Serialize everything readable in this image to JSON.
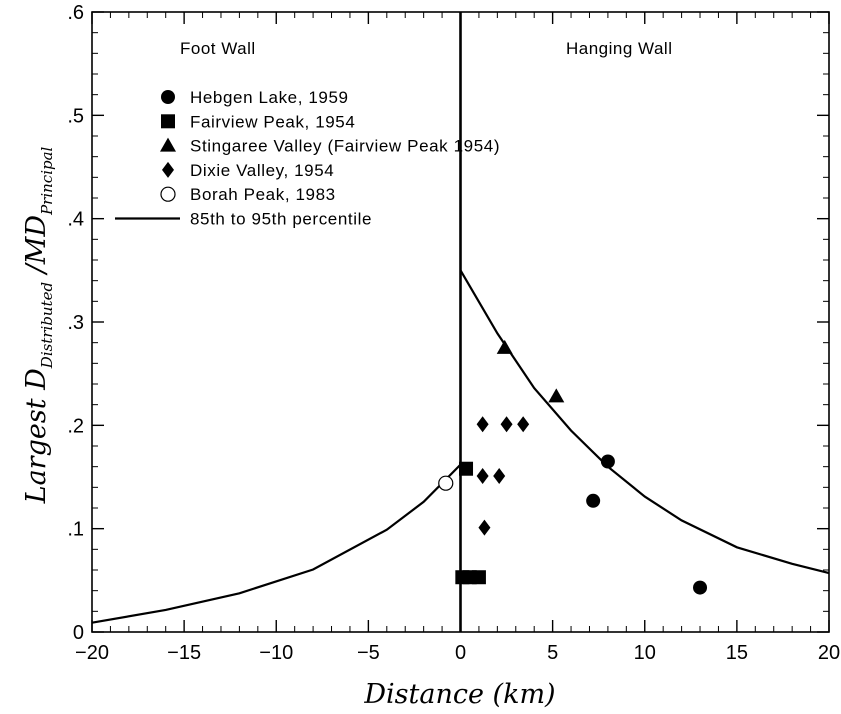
{
  "chart_data": {
    "type": "scatter",
    "xlabel": "Distance (km)",
    "ylabel": {
      "prefix": "Largest ",
      "d": "D",
      "d_sub": "Distributed",
      "sep": " /",
      "md": "MD",
      "md_sub": "Principal"
    },
    "xlim": [
      -20,
      20
    ],
    "ylim": [
      0,
      0.6
    ],
    "x_ticks": [
      -20,
      -15,
      -10,
      -5,
      0,
      5,
      10,
      15,
      20
    ],
    "x_tick_labels": [
      "−20",
      "−15",
      "−10",
      "−5",
      "0",
      "5",
      "10",
      "15",
      "20"
    ],
    "y_ticks": [
      0,
      0.1,
      0.2,
      0.3,
      0.4,
      0.5,
      0.6
    ],
    "y_tick_labels": [
      "0",
      ".1",
      ".2",
      ".3",
      ".4",
      ".5",
      ".6"
    ],
    "grid": false,
    "legend_position": "upper-left",
    "annotations": {
      "foot_wall": "Foot Wall",
      "hanging_wall": "Hanging Wall"
    },
    "series": [
      {
        "name": "Hebgen Lake, 1959",
        "marker": "filled-circle",
        "points": [
          [
            7.2,
            0.127
          ],
          [
            8.0,
            0.165
          ],
          [
            13.0,
            0.043
          ]
        ]
      },
      {
        "name": "Fairview Peak, 1954",
        "marker": "filled-square",
        "points": [
          [
            0.3,
            0.158
          ],
          [
            0.1,
            0.053
          ],
          [
            0.5,
            0.053
          ],
          [
            1.0,
            0.053
          ]
        ]
      },
      {
        "name": "Stingaree Valley  (Fairview Peak 1954)",
        "marker": "filled-triangle",
        "points": [
          [
            2.4,
            0.275
          ],
          [
            5.2,
            0.228
          ]
        ]
      },
      {
        "name": "Dixie Valley, 1954",
        "marker": "filled-diamond",
        "points": [
          [
            1.2,
            0.201
          ],
          [
            2.5,
            0.201
          ],
          [
            3.4,
            0.201
          ],
          [
            1.2,
            0.151
          ],
          [
            2.1,
            0.151
          ],
          [
            1.3,
            0.101
          ]
        ]
      },
      {
        "name": "Borah Peak, 1983",
        "marker": "open-circle",
        "points": [
          [
            -0.8,
            0.144
          ]
        ]
      },
      {
        "name": "85th to 95th percentile",
        "marker": "line",
        "curves": [
          {
            "x": [
              -20,
              -16,
              -12,
              -8,
              -4,
              -2,
              0
            ],
            "y": [
              0.009,
              0.0214,
              0.0375,
              0.0605,
              0.099,
              0.126,
              0.162
            ]
          },
          {
            "x": [
              0,
              2,
              4,
              6,
              8,
              10,
              12,
              15,
              18,
              20
            ],
            "y": [
              0.35,
              0.289,
              0.236,
              0.195,
              0.16,
              0.131,
              0.108,
              0.082,
              0.066,
              0.057
            ]
          }
        ]
      }
    ],
    "fault_line_x": 0
  }
}
